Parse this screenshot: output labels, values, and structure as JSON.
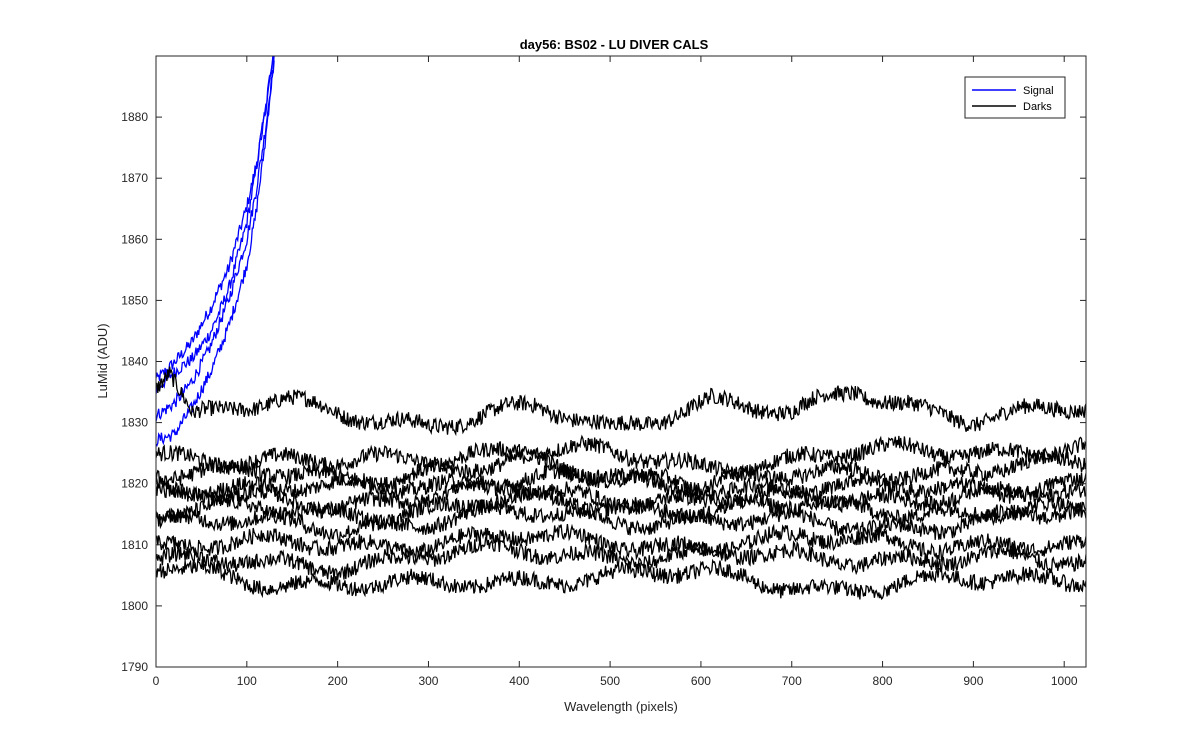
{
  "chart_data": {
    "type": "line",
    "title": "day56: BS02 - LU DIVER CALS",
    "xlabel": "Wavelength (pixels)",
    "ylabel": "LuMid (ADU)",
    "xlim": [
      0,
      1024
    ],
    "ylim": [
      1790,
      1890
    ],
    "xticks": [
      0,
      100,
      200,
      300,
      400,
      500,
      600,
      700,
      800,
      900,
      1000
    ],
    "yticks": [
      1790,
      1800,
      1810,
      1820,
      1830,
      1840,
      1850,
      1860,
      1870,
      1880
    ],
    "grid": false,
    "legend": {
      "placement": "top-right",
      "entries": [
        {
          "label": "Signal",
          "color": "#0000ff"
        },
        {
          "label": "Darks",
          "color": "#000000"
        }
      ]
    },
    "series": [
      {
        "name": "Signal",
        "color": "#0000ff",
        "traces": [
          {
            "x": [
              0,
              20,
              40,
              60,
              80,
              100,
              110,
              120,
              130
            ],
            "y": [
              1837,
              1840,
              1843,
              1848,
              1855,
              1866,
              1873,
              1882,
              1892
            ]
          },
          {
            "x": [
              0,
              20,
              40,
              60,
              80,
              100,
              110,
              120,
              130
            ],
            "y": [
              1835,
              1838,
              1841,
              1846,
              1853,
              1863,
              1871,
              1880,
              1891
            ]
          },
          {
            "x": [
              0,
              20,
              40,
              60,
              80,
              100,
              110,
              120,
              130
            ],
            "y": [
              1831,
              1834,
              1838,
              1843,
              1850,
              1860,
              1868,
              1878,
              1890
            ]
          },
          {
            "x": [
              0,
              20,
              40,
              60,
              80,
              100,
              110,
              120,
              130
            ],
            "y": [
              1828,
              1828,
              1832,
              1838,
              1846,
              1856,
              1864,
              1875,
              1889
            ]
          }
        ]
      },
      {
        "name": "Darks",
        "color": "#000000",
        "traces": [
          {
            "x": [
              0,
              15,
              40,
              140,
              300,
              420,
              500,
              610,
              700,
              770,
              900,
              1024
            ],
            "y": [
              1837,
              1839,
              1831,
              1833,
              1830,
              1832,
              1829,
              1834,
              1831,
              1835,
              1831,
              1832
            ]
          },
          {
            "x": [
              0,
              200,
              400,
              600,
              800,
              1024
            ],
            "y": [
              1825,
              1823,
              1826,
              1823,
              1825,
              1826
            ]
          },
          {
            "x": [
              0,
              200,
              400,
              600,
              800,
              1024
            ],
            "y": [
              1822,
              1821,
              1823,
              1820,
              1822,
              1823
            ]
          },
          {
            "x": [
              0,
              200,
              400,
              600,
              800,
              1024
            ],
            "y": [
              1820,
              1819,
              1821,
              1820,
              1819,
              1820
            ]
          },
          {
            "x": [
              0,
              200,
              400,
              600,
              800,
              1024
            ],
            "y": [
              1818,
              1817,
              1819,
              1817,
              1818,
              1818
            ]
          },
          {
            "x": [
              0,
              200,
              400,
              600,
              800,
              1024
            ],
            "y": [
              1816,
              1815,
              1817,
              1816,
              1816,
              1815
            ]
          },
          {
            "x": [
              0,
              200,
              400,
              600,
              800,
              1024
            ],
            "y": [
              1814,
              1813,
              1815,
              1814,
              1813,
              1815
            ]
          },
          {
            "x": [
              0,
              200,
              400,
              600,
              800,
              1024
            ],
            "y": [
              1810,
              1810,
              1811,
              1810,
              1811,
              1809
            ]
          },
          {
            "x": [
              0,
              200,
              400,
              600,
              800,
              1024
            ],
            "y": [
              1807,
              1807,
              1809,
              1808,
              1808,
              1807
            ]
          },
          {
            "x": [
              0,
              150,
              300,
              450,
              600,
              750,
              900,
              1024
            ],
            "y": [
              1806,
              1804,
              1803,
              1805,
              1805,
              1803,
              1804,
              1805
            ]
          }
        ]
      }
    ]
  }
}
